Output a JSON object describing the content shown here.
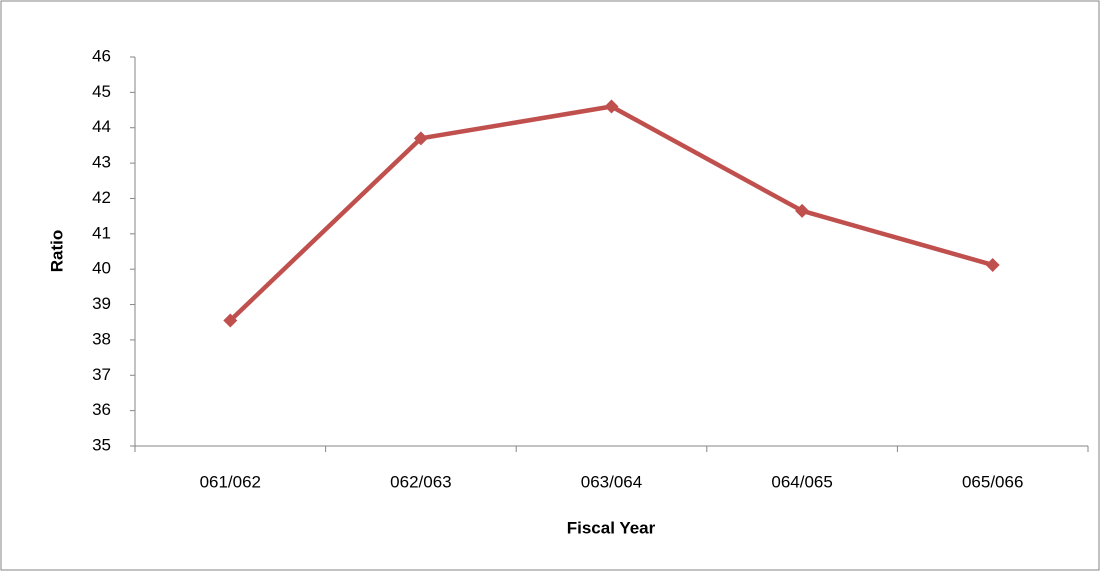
{
  "chart_data": {
    "type": "line",
    "x_label": "Fiscal Year",
    "y_label": "Ratio",
    "categories": [
      "061/062",
      "062/063",
      "063/064",
      "064/065",
      "065/066"
    ],
    "series": [
      {
        "color": "#c0504d",
        "values": [
          38.55,
          43.7,
          44.6,
          41.65,
          40.12
        ]
      }
    ],
    "ylim": [
      35,
      46
    ],
    "yticks": [
      35,
      36,
      37,
      38,
      39,
      40,
      41,
      42,
      43,
      44,
      45,
      46
    ],
    "grid": false
  }
}
